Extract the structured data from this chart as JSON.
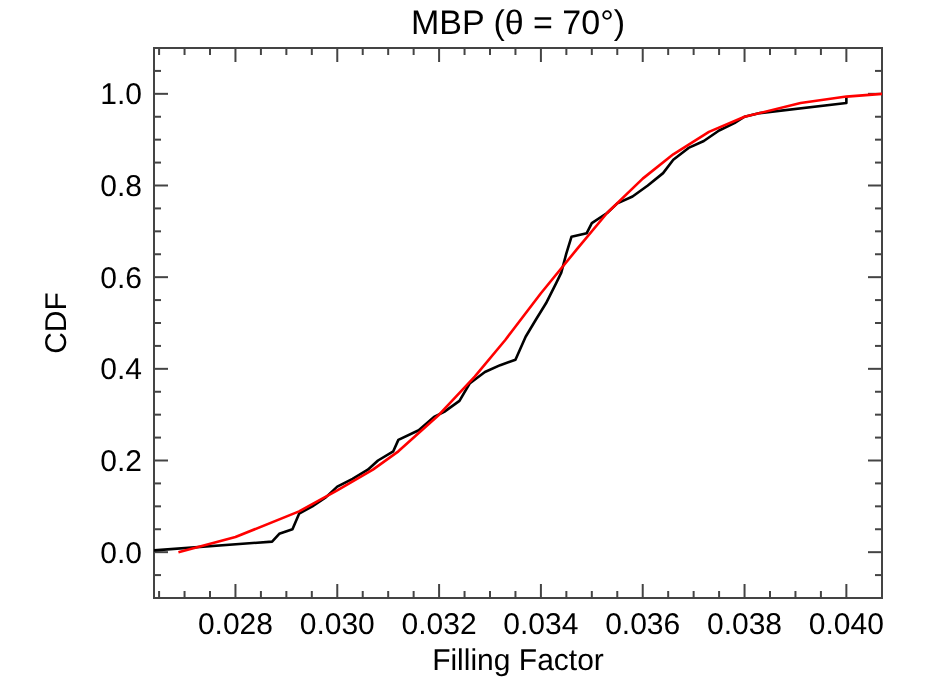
{
  "chart_data": {
    "type": "line",
    "title": "MBP (θ = 70°)",
    "xlabel": "Filling Factor",
    "ylabel": "CDF",
    "xlim": [
      0.0264,
      0.0407
    ],
    "ylim": [
      -0.1,
      1.1
    ],
    "xticks": [
      {
        "value": 0.0265,
        "label": null
      },
      {
        "value": 0.027,
        "label": null
      },
      {
        "value": 0.0275,
        "label": null
      },
      {
        "value": 0.028,
        "label": "0.028"
      },
      {
        "value": 0.0285,
        "label": null
      },
      {
        "value": 0.029,
        "label": null
      },
      {
        "value": 0.0295,
        "label": null
      },
      {
        "value": 0.03,
        "label": "0.030"
      },
      {
        "value": 0.0305,
        "label": null
      },
      {
        "value": 0.031,
        "label": null
      },
      {
        "value": 0.0315,
        "label": null
      },
      {
        "value": 0.032,
        "label": "0.032"
      },
      {
        "value": 0.0325,
        "label": null
      },
      {
        "value": 0.033,
        "label": null
      },
      {
        "value": 0.0335,
        "label": null
      },
      {
        "value": 0.034,
        "label": "0.034"
      },
      {
        "value": 0.0345,
        "label": null
      },
      {
        "value": 0.035,
        "label": null
      },
      {
        "value": 0.0355,
        "label": null
      },
      {
        "value": 0.036,
        "label": "0.036"
      },
      {
        "value": 0.0365,
        "label": null
      },
      {
        "value": 0.037,
        "label": null
      },
      {
        "value": 0.0375,
        "label": null
      },
      {
        "value": 0.038,
        "label": "0.038"
      },
      {
        "value": 0.0385,
        "label": null
      },
      {
        "value": 0.039,
        "label": null
      },
      {
        "value": 0.0395,
        "label": null
      },
      {
        "value": 0.04,
        "label": "0.040"
      }
    ],
    "yticks": [
      {
        "value": -0.05,
        "label": null
      },
      {
        "value": 0,
        "label": "0.0"
      },
      {
        "value": 0.05,
        "label": null
      },
      {
        "value": 0.1,
        "label": null
      },
      {
        "value": 0.15,
        "label": null
      },
      {
        "value": 0.2,
        "label": "0.2"
      },
      {
        "value": 0.25,
        "label": null
      },
      {
        "value": 0.3,
        "label": null
      },
      {
        "value": 0.35,
        "label": null
      },
      {
        "value": 0.4,
        "label": "0.4"
      },
      {
        "value": 0.45,
        "label": null
      },
      {
        "value": 0.5,
        "label": null
      },
      {
        "value": 0.55,
        "label": null
      },
      {
        "value": 0.6,
        "label": "0.6"
      },
      {
        "value": 0.65,
        "label": null
      },
      {
        "value": 0.7,
        "label": null
      },
      {
        "value": 0.75,
        "label": null
      },
      {
        "value": 0.8,
        "label": "0.8"
      },
      {
        "value": 0.85,
        "label": null
      },
      {
        "value": 0.9,
        "label": null
      },
      {
        "value": 0.95,
        "label": null
      },
      {
        "value": 1,
        "label": "1.0"
      },
      {
        "value": 1.05,
        "label": null
      }
    ],
    "grid": false,
    "marker": "none",
    "line_style": "solid",
    "series": [
      {
        "color": "#000000",
        "x": [
          0.0264,
          0.02872,
          0.02886,
          0.02912,
          0.02925,
          0.02951,
          0.02978,
          0.03,
          0.0303,
          0.0306,
          0.0308,
          0.0311,
          0.0312,
          0.0316,
          0.0319,
          0.0321,
          0.0324,
          0.0326,
          0.0329,
          0.0332,
          0.0335,
          0.0337,
          0.0339,
          0.0341,
          0.0343,
          0.0344,
          0.0345,
          0.0346,
          0.0349,
          0.035,
          0.0353,
          0.0355,
          0.0358,
          0.0361,
          0.0364,
          0.0366,
          0.0369,
          0.0372,
          0.0375,
          0.0378,
          0.038,
          0.0383,
          0.04,
          0.04
        ],
        "values": [
          0.004,
          0.023,
          0.04,
          0.05,
          0.084,
          0.1,
          0.12,
          0.143,
          0.16,
          0.18,
          0.2,
          0.22,
          0.245,
          0.266,
          0.295,
          0.306,
          0.33,
          0.368,
          0.393,
          0.408,
          0.42,
          0.47,
          0.507,
          0.543,
          0.587,
          0.61,
          0.652,
          0.688,
          0.696,
          0.718,
          0.74,
          0.761,
          0.776,
          0.8,
          0.827,
          0.856,
          0.882,
          0.897,
          0.92,
          0.936,
          0.95,
          0.958,
          0.98,
          0.994
        ]
      },
      {
        "color": "#ff0000",
        "x": [
          0.02688,
          0.028,
          0.02925,
          0.03,
          0.0307,
          0.0312,
          0.032,
          0.0327,
          0.0333,
          0.034,
          0.0347,
          0.0353,
          0.036,
          0.0366,
          0.0373,
          0.038,
          0.0391,
          0.04,
          0.0407
        ],
        "values": [
          0.0,
          0.033,
          0.089,
          0.135,
          0.18,
          0.22,
          0.3,
          0.383,
          0.463,
          0.565,
          0.66,
          0.74,
          0.815,
          0.868,
          0.917,
          0.95,
          0.98,
          0.994,
          1.0
        ]
      }
    ]
  }
}
